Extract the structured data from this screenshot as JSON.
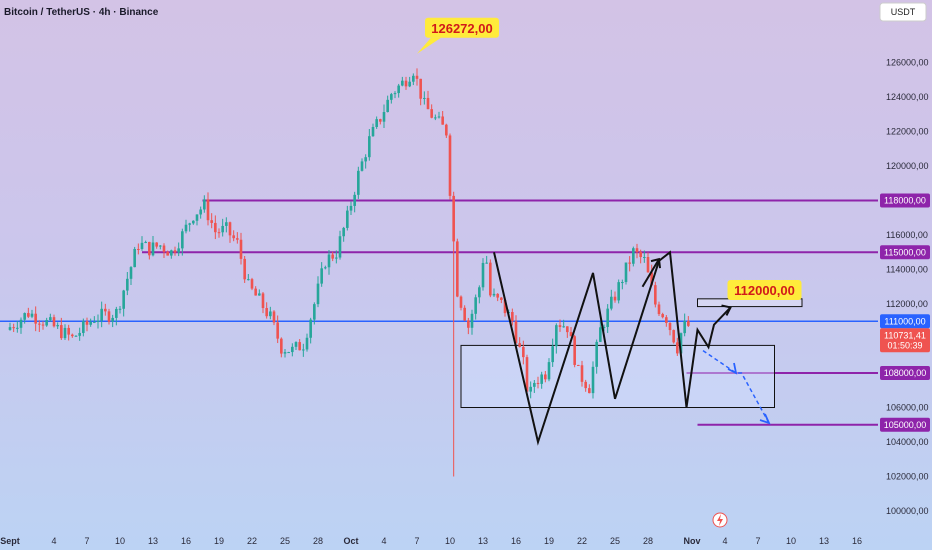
{
  "header": {
    "title": "Bitcoin / TetherUS · 4h · Binance"
  },
  "currency_button": {
    "label": "USDT"
  },
  "colors": {
    "up": "#26a69a",
    "down": "#ef5350",
    "level_line": "#8e24aa",
    "price_line": "#2962ff",
    "callout_bg": "#ffeb3b",
    "callout_text": "#d11a1a",
    "pattern": "#111111",
    "projection": "#2962ff"
  },
  "chart_data": {
    "type": "candlestick",
    "symbol": "Bitcoin / TetherUS",
    "interval": "4h",
    "exchange": "Binance",
    "ylim": [
      100000,
      128000
    ],
    "y_ticks": [
      {
        "value": 126000,
        "label": "126000,00"
      },
      {
        "value": 124000,
        "label": "124000,00"
      },
      {
        "value": 122000,
        "label": "122000,00"
      },
      {
        "value": 120000,
        "label": "120000,00"
      },
      {
        "value": 116000,
        "label": "116000,00"
      },
      {
        "value": 114000,
        "label": "114000,00"
      },
      {
        "value": 112000,
        "label": "112000,00"
      },
      {
        "value": 106000,
        "label": "106000,00"
      },
      {
        "value": 104000,
        "label": "104000,00"
      },
      {
        "value": 102000,
        "label": "102000,00"
      },
      {
        "value": 100000,
        "label": "100000,00"
      }
    ],
    "x_ticks": [
      {
        "d": 0,
        "label": "Sept"
      },
      {
        "d": 4,
        "label": "4"
      },
      {
        "d": 7,
        "label": "7"
      },
      {
        "d": 10,
        "label": "10"
      },
      {
        "d": 13,
        "label": "13"
      },
      {
        "d": 16,
        "label": "16"
      },
      {
        "d": 19,
        "label": "19"
      },
      {
        "d": 22,
        "label": "22"
      },
      {
        "d": 25,
        "label": "25"
      },
      {
        "d": 28,
        "label": "28"
      },
      {
        "d": 31,
        "label": "Oct"
      },
      {
        "d": 34,
        "label": "4"
      },
      {
        "d": 37,
        "label": "7"
      },
      {
        "d": 40,
        "label": "10"
      },
      {
        "d": 43,
        "label": "13"
      },
      {
        "d": 46,
        "label": "16"
      },
      {
        "d": 49,
        "label": "19"
      },
      {
        "d": 52,
        "label": "22"
      },
      {
        "d": 55,
        "label": "25"
      },
      {
        "d": 58,
        "label": "28"
      },
      {
        "d": 62,
        "label": "Nov"
      },
      {
        "d": 65,
        "label": "4"
      },
      {
        "d": 68,
        "label": "7"
      },
      {
        "d": 71,
        "label": "10"
      },
      {
        "d": 74,
        "label": "13"
      },
      {
        "d": 77,
        "label": "16"
      }
    ],
    "price_path": [
      [
        0,
        110500
      ],
      [
        2,
        111500
      ],
      [
        4,
        110800
      ],
      [
        6,
        110000
      ],
      [
        8,
        111200
      ],
      [
        10,
        111500
      ],
      [
        11,
        113500
      ],
      [
        12,
        115500
      ],
      [
        13,
        115200
      ],
      [
        14,
        115400
      ],
      [
        15,
        115000
      ],
      [
        16,
        116000
      ],
      [
        17,
        117200
      ],
      [
        18,
        117700
      ],
      [
        19,
        116200
      ],
      [
        20,
        116300
      ],
      [
        21,
        115500
      ],
      [
        22,
        113000
      ],
      [
        23,
        112200
      ],
      [
        24,
        111200
      ],
      [
        25,
        109500
      ],
      [
        26,
        109300
      ],
      [
        27,
        109700
      ],
      [
        28,
        112000
      ],
      [
        29,
        114500
      ],
      [
        30,
        115000
      ],
      [
        31,
        117000
      ],
      [
        32,
        119500
      ],
      [
        33,
        121500
      ],
      [
        34,
        122800
      ],
      [
        35,
        124200
      ],
      [
        36,
        124800
      ],
      [
        37,
        125600
      ],
      [
        38,
        123500
      ],
      [
        39,
        122700
      ],
      [
        40,
        122000
      ],
      [
        40.5,
        117000
      ],
      [
        41,
        112800
      ],
      [
        42,
        110700
      ],
      [
        43,
        113000
      ],
      [
        43.5,
        115400
      ],
      [
        44,
        112500
      ],
      [
        45,
        112000
      ],
      [
        46,
        111000
      ],
      [
        47,
        108500
      ],
      [
        47.5,
        106500
      ],
      [
        48,
        107500
      ],
      [
        49,
        108000
      ],
      [
        50,
        111000
      ],
      [
        51,
        110700
      ],
      [
        52,
        108000
      ],
      [
        53,
        107200
      ],
      [
        54,
        110500
      ],
      [
        55,
        112000
      ],
      [
        56,
        113500
      ],
      [
        57,
        115000
      ],
      [
        58,
        114500
      ],
      [
        59,
        112000
      ],
      [
        60,
        111200
      ],
      [
        61,
        109500
      ],
      [
        61.5,
        110700
      ],
      [
        62,
        110731
      ]
    ],
    "spike_low": {
      "d": 40.5,
      "value": 102000
    },
    "levels": [
      {
        "value": 118000,
        "label": "118000,00",
        "d_start": 17.5
      },
      {
        "value": 115000,
        "label": "115000,00",
        "d_start": 12
      },
      {
        "value": 108000,
        "label": "108000,00",
        "d_start": 61.5
      },
      {
        "value": 105000,
        "label": "105000,00",
        "d_start": 62.5
      }
    ],
    "current_price": {
      "value": 110731.41,
      "label": "110731,41",
      "countdown": "01:50:39"
    },
    "price_line": {
      "value": 111000,
      "label": "111000,00"
    },
    "callouts": [
      {
        "label": "126272,00",
        "d": 37,
        "value": 126272
      },
      {
        "label": "112000,00",
        "d": 64.5,
        "value": 112000
      }
    ],
    "range_box": {
      "d_start": 41,
      "d_end": 69.5,
      "value_top": 109600,
      "value_bottom": 106000
    },
    "target_box": {
      "d_start": 62.5,
      "d_end": 72,
      "value_top": 112300,
      "value_bottom": 111850
    },
    "pattern_path": [
      [
        44,
        115000
      ],
      [
        48,
        104000
      ],
      [
        53,
        113800
      ],
      [
        55,
        106500
      ],
      [
        59,
        114500
      ],
      [
        60,
        115000
      ],
      [
        61.5,
        106000
      ],
      [
        62.5,
        110500
      ],
      [
        63.5,
        109500
      ],
      [
        64,
        110800
      ],
      [
        65.5,
        111800
      ]
    ],
    "pattern_arrow": [
      [
        57.5,
        113000
      ],
      [
        59,
        114600
      ]
    ],
    "projection_path": [
      [
        63,
        109300
      ],
      [
        66,
        108000
      ],
      [
        66.5,
        108000
      ],
      [
        69,
        105100
      ]
    ]
  }
}
